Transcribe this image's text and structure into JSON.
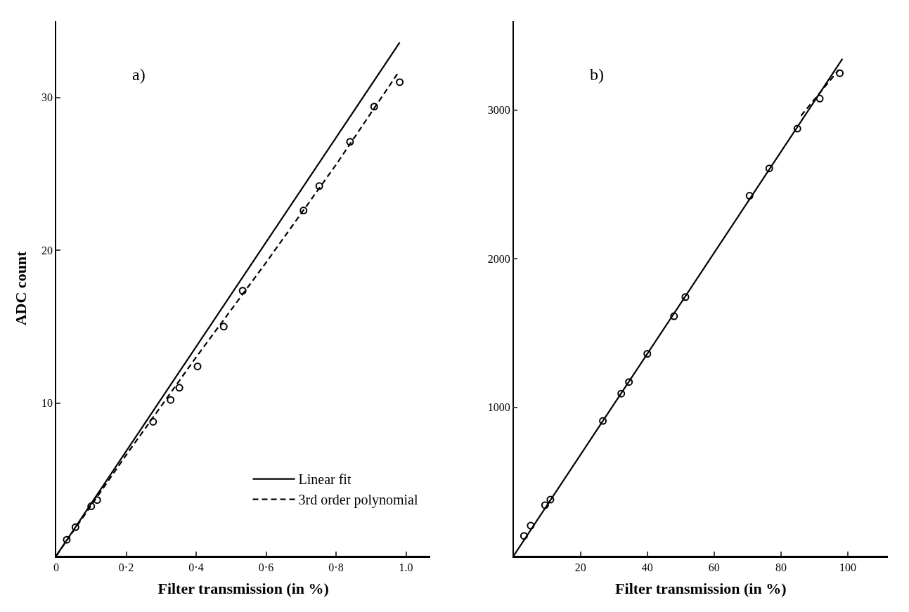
{
  "chart_data": [
    {
      "type": "scatter",
      "annotations": [
        "a)"
      ],
      "xlabel": "Filter transmission (in %)",
      "ylabel": "ADC count",
      "xlim": [
        0,
        1.07
      ],
      "ylim": [
        0,
        35
      ],
      "xticks": [
        0,
        {
          "value": 0.2,
          "label": "0·2"
        },
        {
          "value": 0.4,
          "label": "0·4"
        },
        {
          "value": 0.6,
          "label": "0·6"
        },
        {
          "value": 0.8,
          "label": "0·8"
        },
        {
          "value": 1.0,
          "label": "1.0"
        }
      ],
      "yticks": [
        10,
        20,
        30
      ],
      "legend": "bottom right",
      "series": [
        {
          "marker": "circle",
          "color": "#000000",
          "x": [
            0.03,
            0.055,
            0.1,
            0.117,
            0.277,
            0.327,
            0.352,
            0.404,
            0.479,
            0.533,
            0.707,
            0.752,
            0.84,
            0.909,
            0.982
          ],
          "values": [
            1.05,
            1.87,
            3.24,
            3.65,
            8.77,
            10.2,
            11.0,
            12.4,
            15.0,
            17.35,
            22.6,
            24.2,
            27.1,
            29.4,
            31.0
          ]
        },
        {
          "type": "line",
          "name": "Linear fit",
          "line_style": "solid",
          "color": "#000000",
          "x": [
            0,
            0.982
          ],
          "values": [
            0,
            33.6
          ]
        },
        {
          "type": "line",
          "name": "3rd order polynomial",
          "line_style": "dashed",
          "color": "#000000",
          "x": [
            0,
            0.2,
            0.4,
            0.6,
            0.8,
            0.98
          ],
          "values": [
            0,
            6.6,
            13.0,
            19.2,
            25.6,
            31.7
          ]
        }
      ]
    },
    {
      "type": "scatter",
      "annotations": [
        "b)"
      ],
      "xlabel": "Filter transmission (in %)",
      "xlim": [
        0,
        112
      ],
      "ylim": [
        0,
        3600
      ],
      "xticks": [
        20,
        40,
        60,
        80,
        100
      ],
      "yticks": [
        1000,
        2000,
        3000
      ],
      "series": [
        {
          "marker": "circle",
          "color": "#000000",
          "x": [
            3.1,
            5.1,
            9.4,
            11.0,
            26.7,
            32.2,
            34.5,
            40,
            48,
            51.4,
            70.6,
            76.5,
            84.9,
            91.6,
            97.6
          ],
          "values": [
            134,
            203,
            341,
            378,
            908,
            1092,
            1170,
            1360,
            1613,
            1742,
            2424,
            2608,
            2876,
            3078,
            3249
          ]
        },
        {
          "type": "line",
          "line_style": "solid",
          "color": "#000000",
          "x": [
            0,
            98.4
          ],
          "values": [
            0,
            3346
          ]
        },
        {
          "type": "line",
          "line_style": "dashed",
          "color": "#000000",
          "x": [
            86,
            97.3
          ],
          "values": [
            2963,
            3272
          ]
        }
      ]
    }
  ]
}
